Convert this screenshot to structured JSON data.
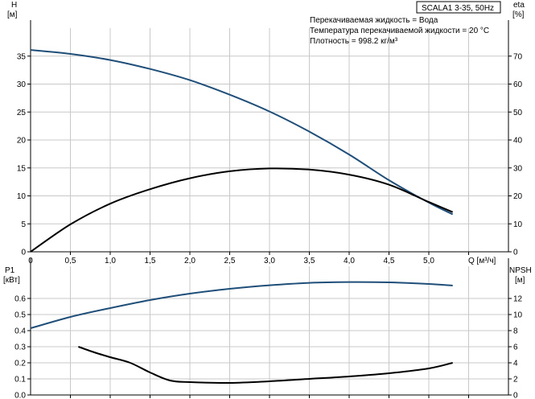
{
  "title_box": "SCALA1 3-35, 50Hz",
  "info": {
    "liquid": "Перекачиваемая жидкость = Вода",
    "temperature": "Температура перекачиваемой жидкости = 20 °C",
    "density": "Плотность = 998.2 кг/м³"
  },
  "colors": {
    "blue": "#1f4e79",
    "black": "#000000",
    "grid": "#c8c8c8"
  },
  "chart_data": [
    {
      "type": "line",
      "name": "head-efficiency",
      "left_axis": {
        "label": "H",
        "unit": "[м]",
        "range": [
          0,
          40
        ],
        "ticks": [
          0,
          5,
          10,
          15,
          20,
          25,
          30,
          35
        ]
      },
      "right_axis": {
        "label": "eta",
        "unit": "[%]",
        "range": [
          0,
          80
        ],
        "ticks": [
          0,
          10,
          20,
          30,
          40,
          50,
          60,
          70
        ]
      },
      "x_axis": {
        "label": "Q [м³/ч]",
        "range": [
          0,
          6
        ],
        "ticks": [
          "0",
          "0,5",
          "1,0",
          "1,5",
          "2,0",
          "2,5",
          "3,0",
          "3,5",
          "4,0",
          "4,5",
          "5,0"
        ]
      },
      "grid": true,
      "series": [
        {
          "axis": "left",
          "color": "#1f4e79",
          "x": [
            0,
            0.5,
            1.0,
            1.5,
            2.0,
            2.5,
            3.0,
            3.5,
            4.0,
            4.5,
            5.0,
            5.3
          ],
          "y": [
            36.1,
            35.4,
            34.3,
            32.7,
            30.7,
            28.1,
            25.1,
            21.5,
            17.4,
            12.8,
            8.8,
            6.7
          ]
        },
        {
          "axis": "right",
          "color": "#000000",
          "x": [
            0,
            0.5,
            1.0,
            1.5,
            2.0,
            2.5,
            3.0,
            3.5,
            4.0,
            4.5,
            5.0,
            5.3
          ],
          "y": [
            0,
            9.8,
            17.2,
            22.4,
            26.3,
            28.8,
            29.8,
            29.4,
            27.6,
            24.0,
            17.8,
            14.2
          ]
        }
      ]
    },
    {
      "type": "line",
      "name": "power-npsh",
      "left_axis": {
        "label": "P1",
        "unit": "[кВт]",
        "range": [
          0,
          0.8
        ],
        "ticks": [
          "0.0",
          "0.1",
          "0.2",
          "0.3",
          "0.4",
          "0.5",
          "0.6"
        ]
      },
      "right_axis": {
        "label": "NPSH",
        "unit": "[м]",
        "range": [
          0,
          16
        ],
        "ticks": [
          0,
          2,
          4,
          6,
          8,
          10,
          12
        ]
      },
      "x_axis": {
        "range": [
          0,
          6
        ]
      },
      "grid": true,
      "series": [
        {
          "axis": "left",
          "color": "#1f4e79",
          "x": [
            0,
            0.5,
            1.0,
            1.5,
            2.0,
            2.5,
            3.0,
            3.5,
            4.0,
            4.5,
            5.0,
            5.3
          ],
          "y": [
            0.415,
            0.485,
            0.54,
            0.59,
            0.63,
            0.66,
            0.682,
            0.697,
            0.702,
            0.7,
            0.69,
            0.68
          ]
        },
        {
          "axis": "right",
          "color": "#000000",
          "x": [
            0.6,
            0.8,
            1.0,
            1.25,
            1.5,
            1.75,
            2.0,
            2.5,
            3.0,
            3.5,
            4.0,
            4.5,
            5.0,
            5.3
          ],
          "y": [
            6.0,
            5.3,
            4.7,
            4.0,
            2.8,
            1.8,
            1.6,
            1.5,
            1.7,
            2.0,
            2.3,
            2.7,
            3.3,
            4.0
          ]
        }
      ]
    }
  ]
}
